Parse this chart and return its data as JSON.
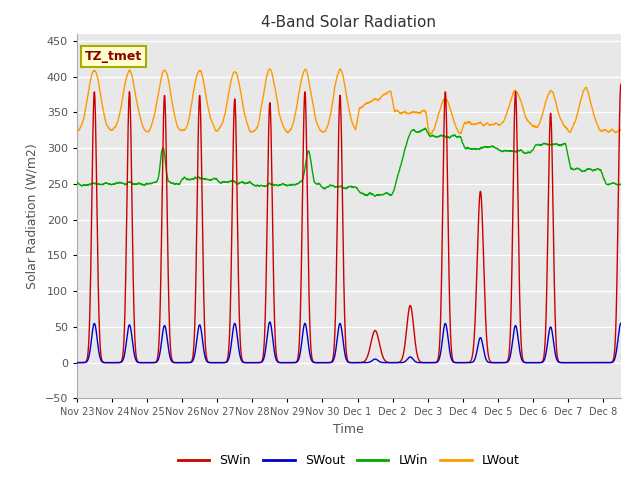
{
  "title": "4-Band Solar Radiation",
  "xlabel": "Time",
  "ylabel": "Solar Radiation (W/m2)",
  "ylim": [
    -50,
    460
  ],
  "yticks": [
    -50,
    0,
    50,
    100,
    150,
    200,
    250,
    300,
    350,
    400,
    450
  ],
  "plot_bg": "#e8e8e8",
  "legend_labels": [
    "SWin",
    "SWout",
    "LWin",
    "LWout"
  ],
  "legend_colors": [
    "#cc0000",
    "#0000cc",
    "#00aa00",
    "#ff9900"
  ],
  "annotation_text": "TZ_tmet",
  "annotation_bg": "#ffffcc",
  "annotation_border": "#aaaa00",
  "annotation_color": "#880000",
  "xtick_labels": [
    "Nov 23",
    "Nov 24",
    "Nov 25",
    "Nov 26",
    "Nov 27",
    "Nov 28",
    "Nov 29",
    "Nov 30",
    "Dec 1",
    "Dec 2",
    "Dec 3",
    "Dec 4",
    "Dec 5",
    "Dec 6",
    "Dec 7",
    "Dec 8"
  ],
  "grid_color": "#ffffff",
  "line_width": 1.0
}
